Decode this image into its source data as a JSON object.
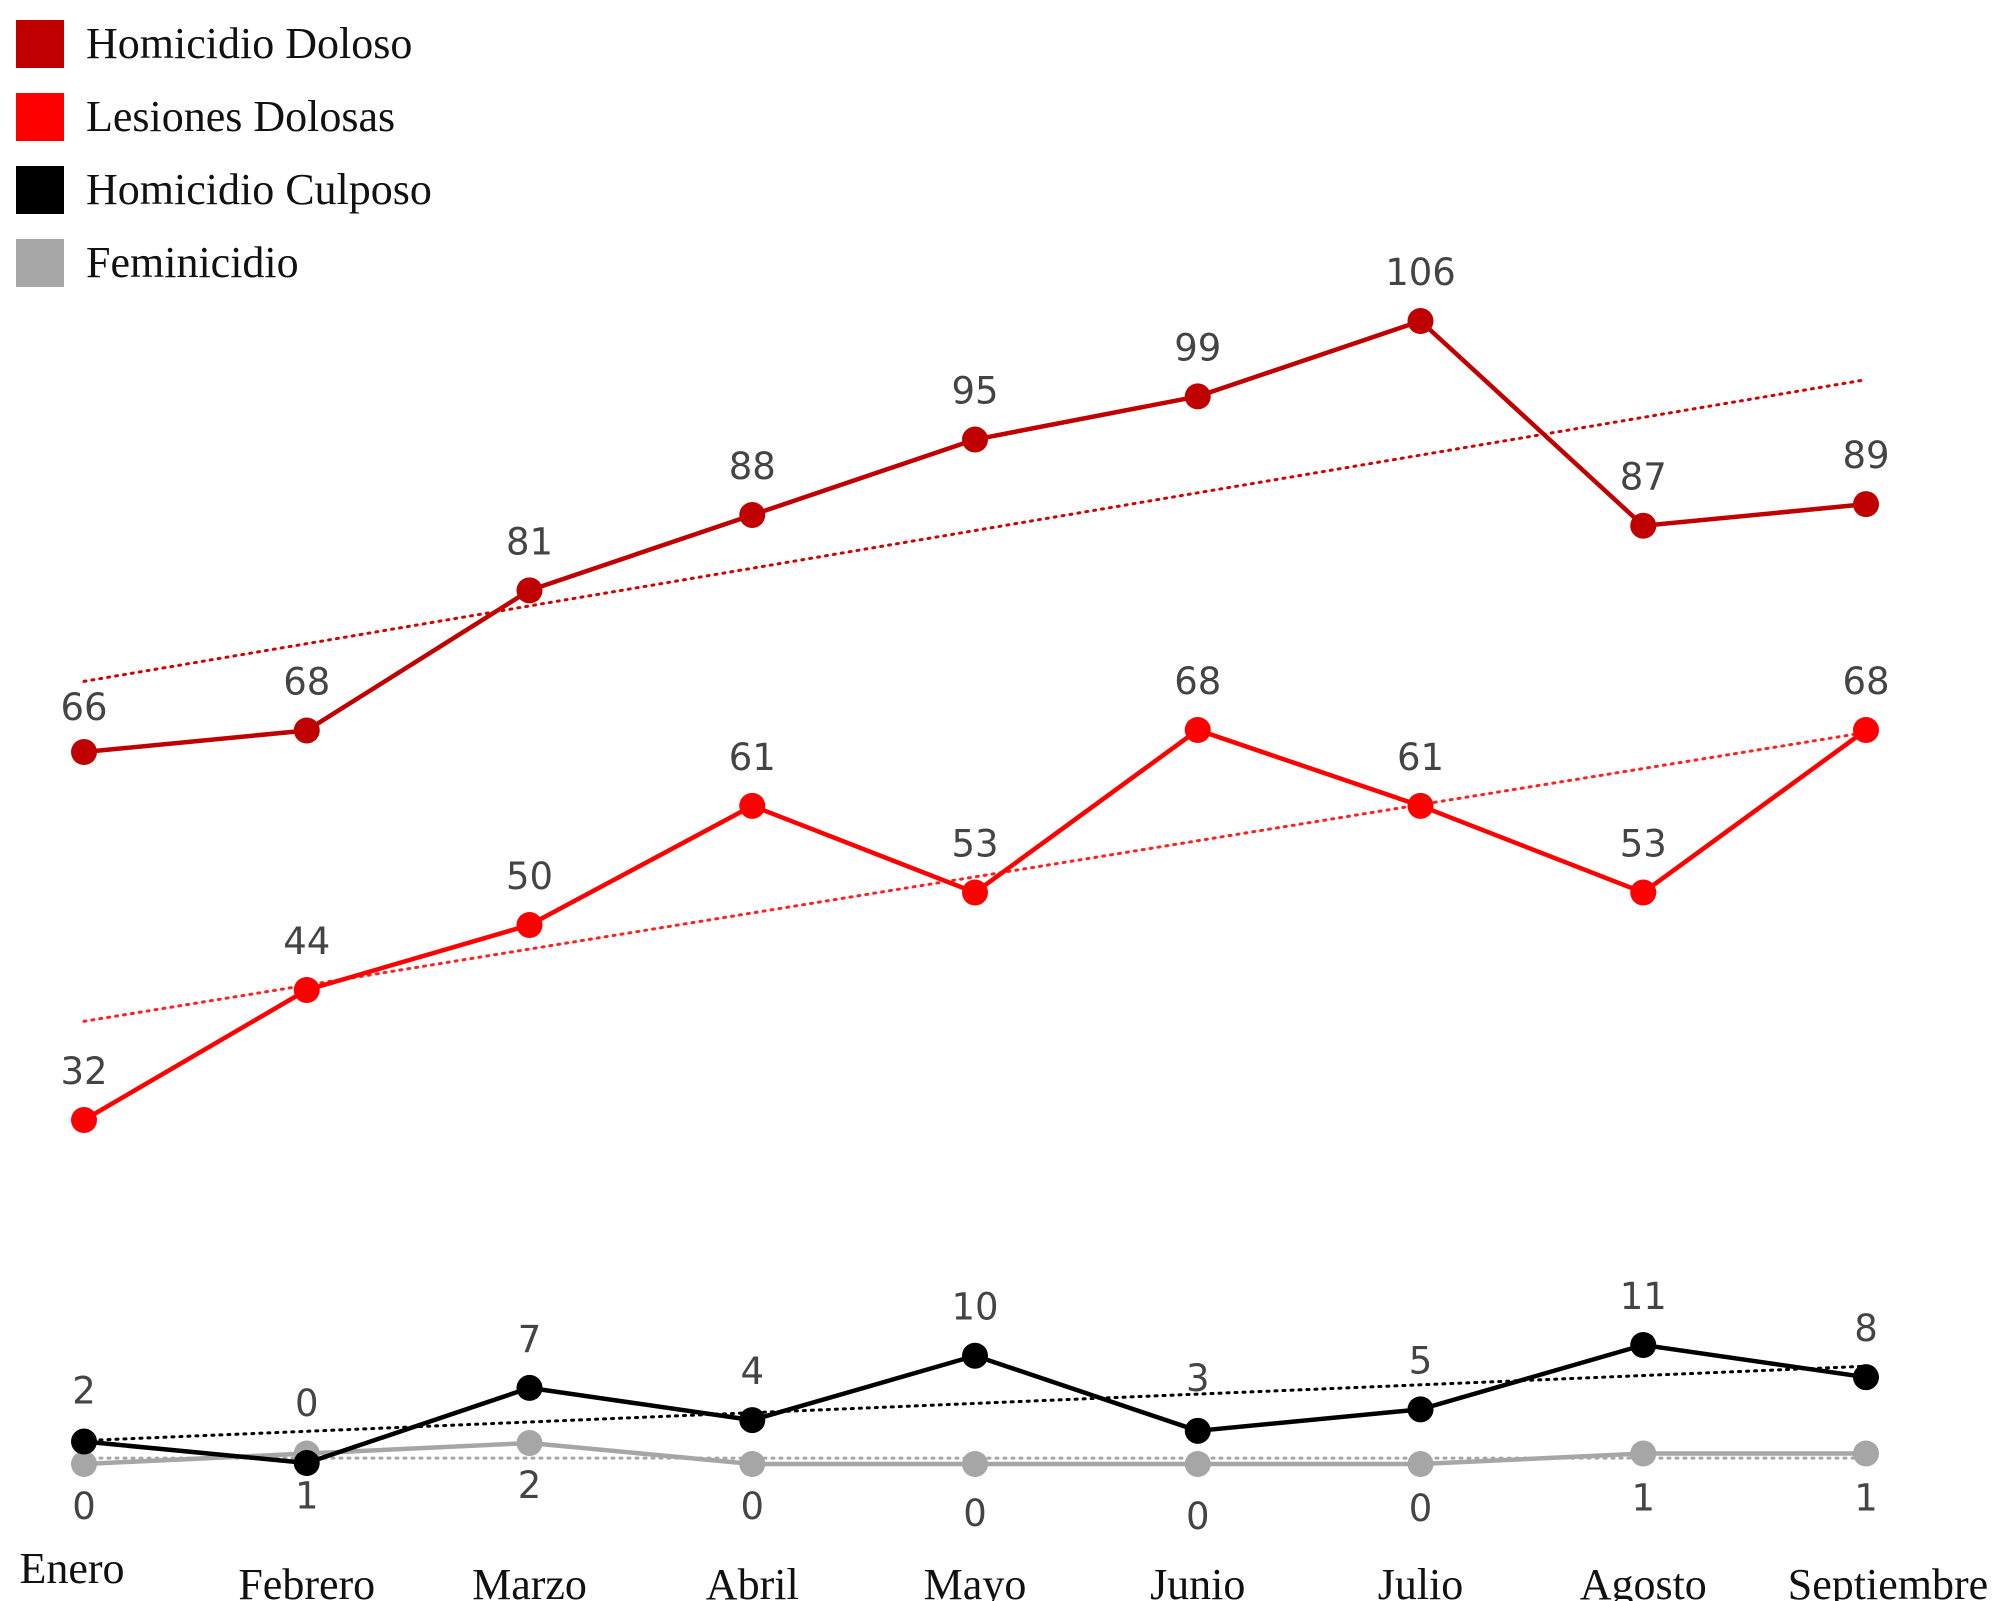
{
  "chart_data": {
    "type": "line",
    "categories": [
      "Enero",
      "Febrero",
      "Marzo",
      "Abril",
      "Mayo",
      "Junio",
      "Julio",
      "Agosto",
      "Septiembre"
    ],
    "series": [
      {
        "name": "Homicidio Doloso",
        "color": "#c00000",
        "values": [
          66,
          68,
          81,
          88,
          95,
          99,
          106,
          87,
          89
        ],
        "trendline": true
      },
      {
        "name": "Lesiones Dolosas",
        "color": "#ff0000",
        "values": [
          32,
          44,
          50,
          61,
          53,
          68,
          61,
          53,
          68
        ],
        "trendline": true
      },
      {
        "name": "Homicidio Culposo",
        "color": "#000000",
        "values": [
          2,
          0,
          7,
          4,
          10,
          3,
          5,
          11,
          8
        ],
        "trendline": true
      },
      {
        "name": "Feminicidio",
        "color": "#a6a6a6",
        "values": [
          0,
          1,
          2,
          0,
          0,
          0,
          0,
          1,
          1
        ],
        "trendline": true
      }
    ],
    "legend_position": "top-left",
    "grid": false,
    "axes_visible": false
  }
}
